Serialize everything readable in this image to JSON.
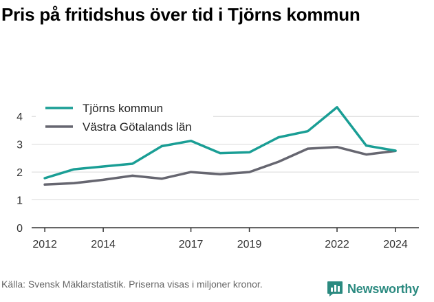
{
  "title": "Pris på fritidshus över tid i Tjörns kommun",
  "footer": {
    "source_text": "Källa: Svensk Mäklarstatistik. Priserna visas i miljoner kronor."
  },
  "brand": {
    "name": "Newsworthy",
    "icon": "bar-chart-speech-bubble-icon"
  },
  "colors": {
    "series_1": "#1a9e95",
    "series_2": "#666670",
    "grid": "#d9d9d9",
    "axis": "#333333",
    "brand": "#2b8a80"
  },
  "chart_data": {
    "type": "line",
    "title": "Pris på fritidshus över tid i Tjörns kommun",
    "xlabel": "",
    "ylabel": "",
    "x": [
      2012,
      2013,
      2014,
      2015,
      2016,
      2017,
      2018,
      2019,
      2020,
      2021,
      2022,
      2023,
      2024
    ],
    "xlim": [
      2011.55,
      2024.8
    ],
    "ylim": [
      0,
      4.5
    ],
    "x_ticks": [
      2012,
      2014,
      2017,
      2019,
      2022,
      2024
    ],
    "y_ticks": [
      0,
      1,
      2,
      3,
      4
    ],
    "grid": true,
    "legend": "top-left",
    "series": [
      {
        "name": "Tjörns kommun",
        "values": [
          1.78,
          2.1,
          2.2,
          2.3,
          2.93,
          3.12,
          2.68,
          2.71,
          3.25,
          3.47,
          4.33,
          2.95,
          2.77
        ]
      },
      {
        "name": "Västra Götalands län",
        "values": [
          1.55,
          1.6,
          1.72,
          1.87,
          1.76,
          2.0,
          1.92,
          2.0,
          2.37,
          2.84,
          2.9,
          2.63,
          2.76
        ]
      }
    ]
  }
}
